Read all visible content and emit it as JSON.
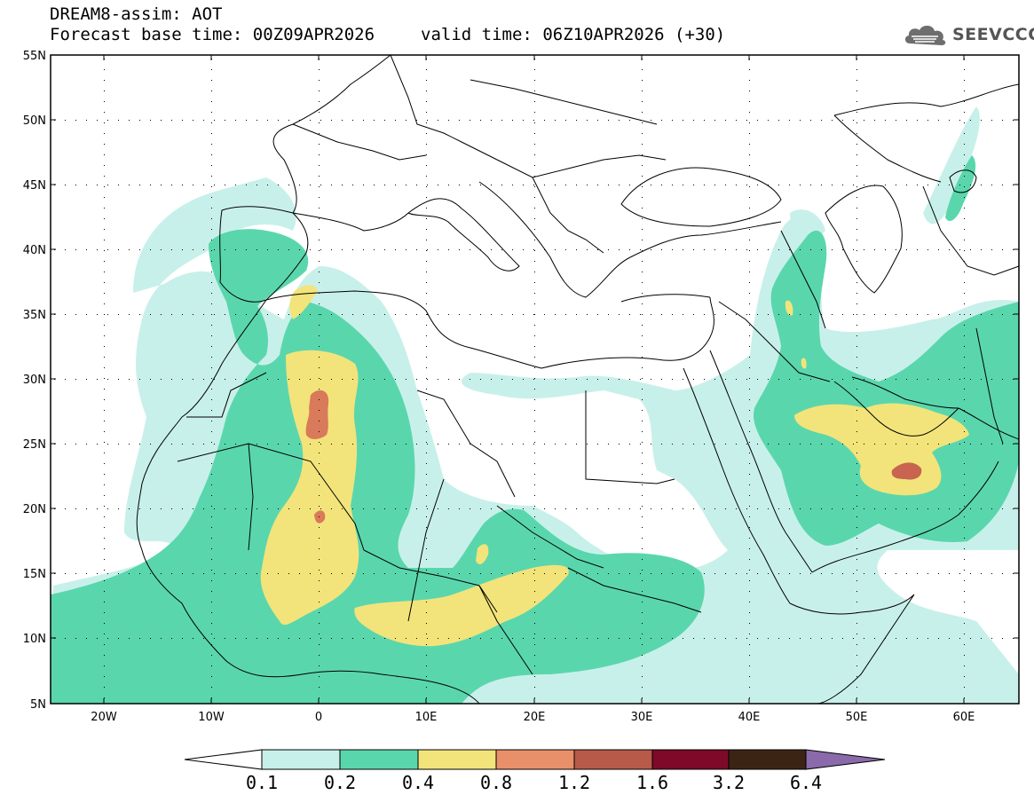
{
  "header": {
    "title_line1": "DREAM8-assim: AOT",
    "base_time": "Forecast base time: 00Z09APR2026",
    "valid_time": "valid time: 06Z10APR2026 (+30)"
  },
  "logo": {
    "text": "SEEVCCC",
    "icon": "cloud-icon"
  },
  "axes": {
    "lat_labels": [
      "55N",
      "50N",
      "45N",
      "40N",
      "35N",
      "30N",
      "25N",
      "20N",
      "15N",
      "10N",
      "5N"
    ],
    "lon_labels": [
      "20W",
      "10W",
      "0",
      "10E",
      "20E",
      "30E",
      "40E",
      "50E",
      "60E"
    ]
  },
  "colorbar": {
    "labels": [
      "0.1",
      "0.2",
      "0.4",
      "0.8",
      "1.2",
      "1.6",
      "3.2",
      "6.4"
    ],
    "colors": [
      "#c8f0ea",
      "#5ad6ad",
      "#f2e47a",
      "#e8906a",
      "#b85a4a",
      "#7d0a28",
      "#3c2414",
      "#8a6aaa"
    ]
  },
  "field_colors": {
    "low": "#c8f0ea",
    "medium": "#5ad6ad",
    "high": "#f2e47a",
    "very_high": "#e8906a",
    "extreme": "#c86450"
  }
}
